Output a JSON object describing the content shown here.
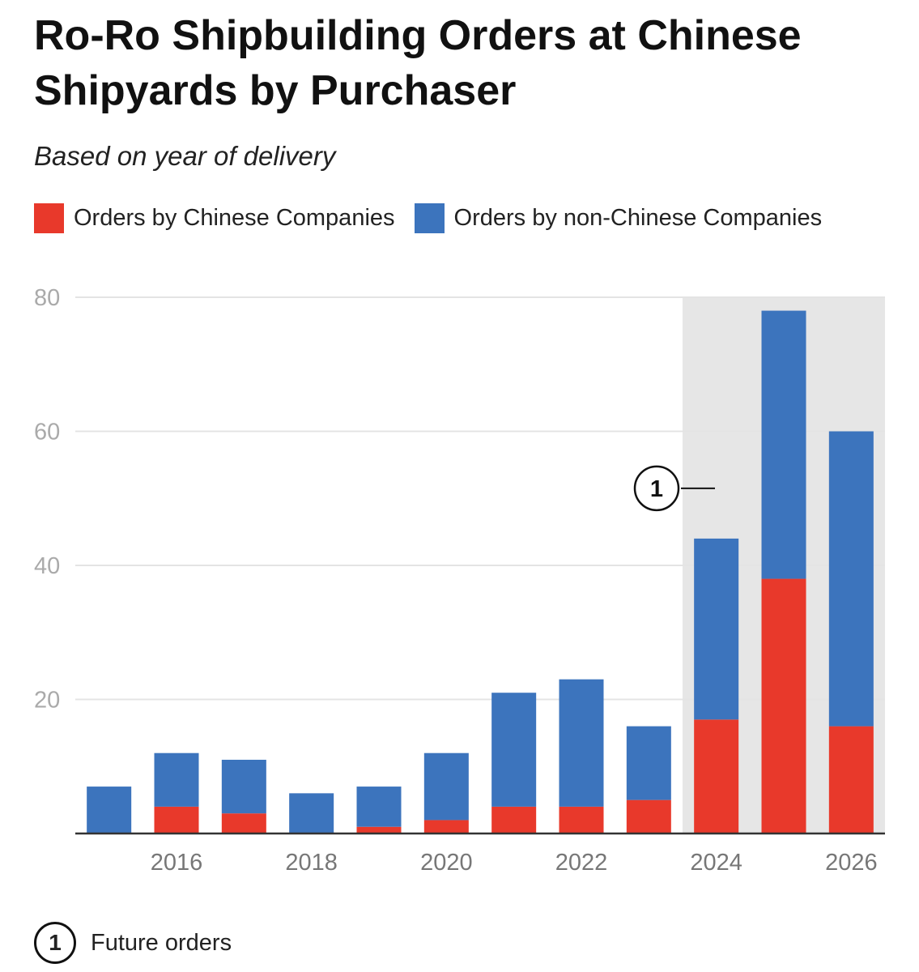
{
  "chart_data": {
    "type": "bar",
    "stacked": true,
    "title": "Ro-Ro Shipbuilding Orders at Chinese Shipyards by Purchaser",
    "subtitle": "Based on year of delivery",
    "categories": [
      "2015",
      "2016",
      "2017",
      "2018",
      "2019",
      "2020",
      "2021",
      "2022",
      "2023",
      "2024",
      "2025",
      "2026"
    ],
    "x_tick_labels": [
      "2016",
      "2018",
      "2020",
      "2022",
      "2024",
      "2026"
    ],
    "series": [
      {
        "name": "Orders by Chinese Companies",
        "color": "#e8392b",
        "values": [
          0,
          4,
          3,
          0,
          1,
          2,
          4,
          4,
          5,
          17,
          38,
          16
        ]
      },
      {
        "name": "Orders by non-Chinese Companies",
        "color": "#3c74bd",
        "values": [
          7,
          8,
          8,
          6,
          6,
          10,
          17,
          19,
          11,
          27,
          40,
          44
        ]
      }
    ],
    "ylim": [
      0,
      80
    ],
    "y_ticks": [
      20,
      40,
      60,
      80
    ],
    "xlabel": "",
    "ylabel": "",
    "highlight": {
      "from_category": "2024",
      "to_category": "2026",
      "color": "#e6e6e6",
      "marker": "1"
    },
    "annotation": {
      "marker": "1",
      "text": "Future orders"
    }
  },
  "colors": {
    "gridline": "#e4e4e4",
    "axis": "#333333",
    "tick_text": "#777777",
    "y_tick_text": "#aaaaaa"
  }
}
